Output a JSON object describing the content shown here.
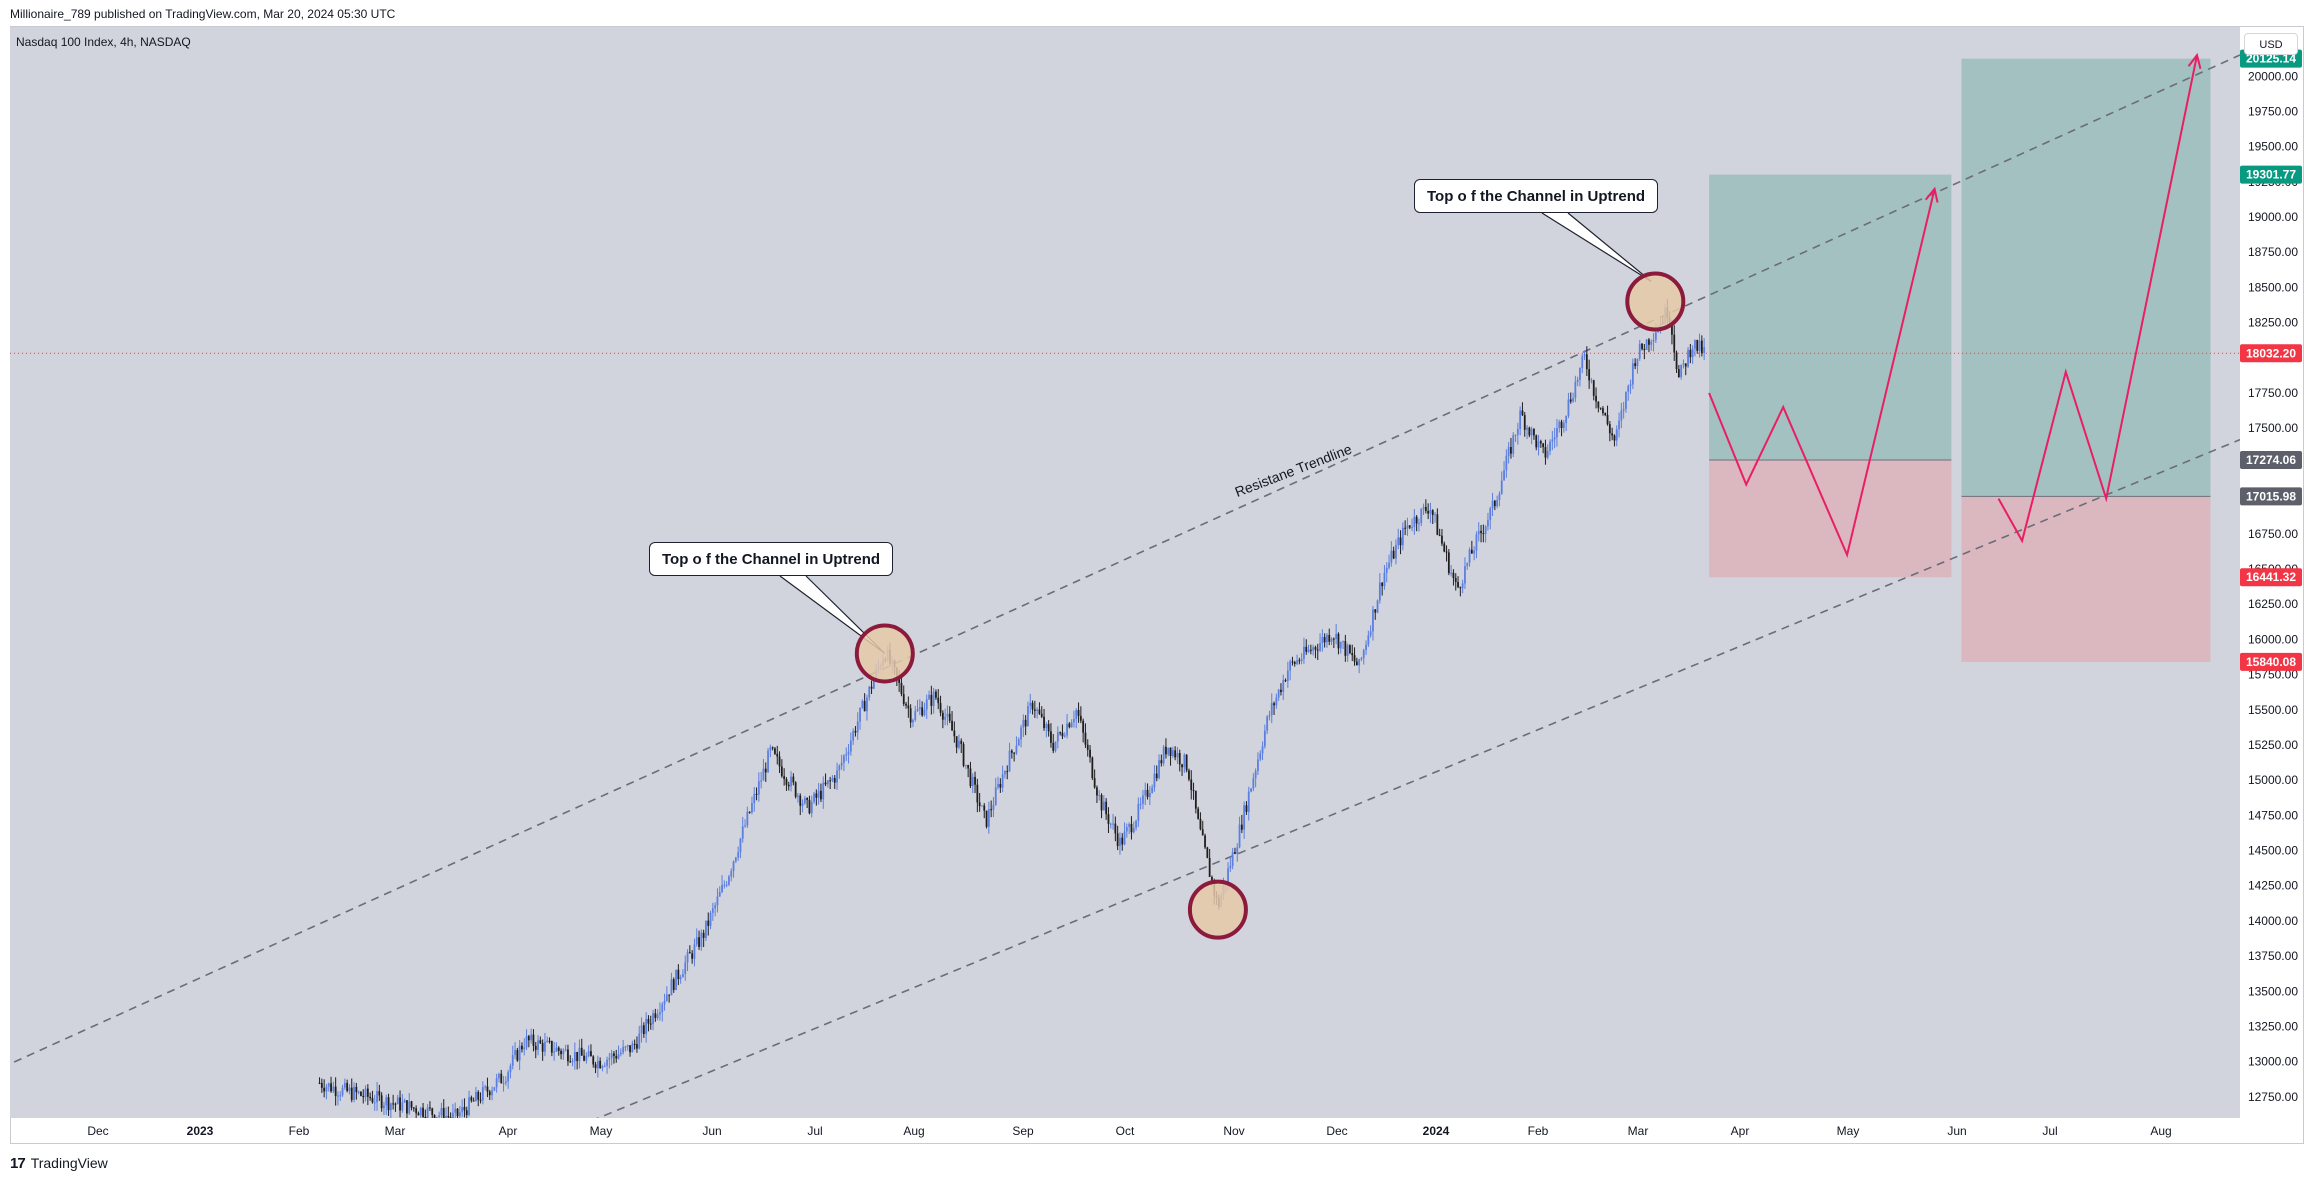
{
  "header": {
    "publish_info": "Millionaire_789 published on TradingView.com, Mar 20, 2024 05:30 UTC"
  },
  "symbol": {
    "label": "Nasdaq 100 Index, 4h, NASDAQ"
  },
  "currency": "USD",
  "footer": {
    "brand": "TradingView",
    "logo_text": "17"
  },
  "annotations": {
    "callout_1": "Top o f the Channel in Uptrend",
    "callout_2": "Top o f the Channel in Uptrend",
    "trendline_label": "Resistane Trendline"
  },
  "colors": {
    "background": "#d1d4dc",
    "up_candle": "#5b7fe0",
    "down_candle": "#1e1e1e",
    "target_zone": "#9ebfbf",
    "stop_zone": "#dcb4bc",
    "path": "#e91e63",
    "circle_fill": "#e6c9a8",
    "circle_stroke": "#8b1a3c",
    "current_price": "#f23645",
    "target_tag": "#089981",
    "neutral_tag": "#5d606b"
  },
  "chart_data": {
    "type": "candlestick",
    "symbol": "Nasdaq 100 Index",
    "timeframe": "4h",
    "exchange": "NASDAQ",
    "x_axis": {
      "ticks": [
        "Dec",
        "2023",
        "Feb",
        "Mar",
        "Apr",
        "May",
        "Jun",
        "Jul",
        "Aug",
        "Sep",
        "Oct",
        "Nov",
        "Dec",
        "2024",
        "Feb",
        "Mar",
        "Apr",
        "May",
        "Jun",
        "Jul",
        "Aug"
      ],
      "bold_ticks": [
        "2023",
        "2024"
      ]
    },
    "y_axis": {
      "range": [
        12600,
        20350
      ],
      "ticks": [
        "20250.00",
        "20000.00",
        "19750.00",
        "19500.00",
        "19250.00",
        "19000.00",
        "18750.00",
        "18500.00",
        "18250.00",
        "18000.00",
        "17750.00",
        "17500.00",
        "17250.00",
        "17000.00",
        "16750.00",
        "16500.00",
        "16250.00",
        "16000.00",
        "15750.00",
        "15500.00",
        "15250.00",
        "15000.00",
        "14750.00",
        "14500.00",
        "14250.00",
        "14000.00",
        "13750.00",
        "13500.00",
        "13250.00",
        "13000.00",
        "12750.00"
      ]
    },
    "price_path": [
      [
        "2023-02-01",
        12850
      ],
      [
        "2023-02-07",
        12800
      ],
      [
        "2023-03-13",
        12600
      ],
      [
        "2023-03-28",
        12900
      ],
      [
        "2023-04-03",
        13150
      ],
      [
        "2023-04-25",
        13000
      ],
      [
        "2023-05-05",
        13100
      ],
      [
        "2023-05-26",
        13900
      ],
      [
        "2023-06-02",
        14300
      ],
      [
        "2023-06-15",
        15200
      ],
      [
        "2023-06-26",
        14800
      ],
      [
        "2023-07-05",
        15050
      ],
      [
        "2023-07-19",
        15920
      ],
      [
        "2023-07-27",
        15450
      ],
      [
        "2023-08-03",
        15600
      ],
      [
        "2023-08-10",
        15250
      ],
      [
        "2023-08-18",
        14700
      ],
      [
        "2023-08-24",
        15100
      ],
      [
        "2023-09-01",
        15550
      ],
      [
        "2023-09-07",
        15250
      ],
      [
        "2023-09-14",
        15500
      ],
      [
        "2023-09-21",
        14850
      ],
      [
        "2023-09-27",
        14550
      ],
      [
        "2023-10-03",
        14800
      ],
      [
        "2023-10-11",
        15250
      ],
      [
        "2023-10-17",
        15100
      ],
      [
        "2023-10-20",
        14700
      ],
      [
        "2023-10-26",
        14100
      ],
      [
        "2023-11-01",
        14600
      ],
      [
        "2023-11-10",
        15450
      ],
      [
        "2023-11-16",
        15800
      ],
      [
        "2023-11-29",
        16050
      ],
      [
        "2023-12-07",
        15800
      ],
      [
        "2023-12-14",
        16450
      ],
      [
        "2023-12-21",
        16800
      ],
      [
        "2023-12-28",
        16950
      ],
      [
        "2024-01-05",
        16350
      ],
      [
        "2024-01-10",
        16650
      ],
      [
        "2024-01-16",
        16950
      ],
      [
        "2024-01-24",
        17600
      ],
      [
        "2024-01-31",
        17300
      ],
      [
        "2024-02-06",
        17600
      ],
      [
        "2024-02-12",
        18000
      ],
      [
        "2024-02-15",
        17750
      ],
      [
        "2024-02-21",
        17400
      ],
      [
        "2024-02-27",
        18000
      ],
      [
        "2024-03-04",
        18200
      ],
      [
        "2024-03-08",
        18350
      ],
      [
        "2024-03-11",
        17850
      ],
      [
        "2024-03-15",
        18100
      ],
      [
        "2024-03-19",
        18032
      ]
    ],
    "trendlines": [
      {
        "name": "Resistane Trendline",
        "style": "dashed",
        "points": [
          [
            "2022-11-08",
            13060
          ],
          [
            "2024-09-02",
            20240
          ]
        ]
      },
      {
        "name": "support",
        "style": "dashed",
        "points": [
          [
            "2023-05-05",
            12700
          ],
          [
            "2024-09-02",
            17500
          ]
        ]
      }
    ],
    "highlighted_points": [
      {
        "date": "2023-07-19",
        "price": 15900
      },
      {
        "date": "2023-10-26",
        "price": 14080
      },
      {
        "date": "2024-03-04",
        "price": 18400
      }
    ],
    "positions": [
      {
        "start": "2024-03-20",
        "end": "2024-05-31",
        "entry": 17274.06,
        "target": 19301.77,
        "stop": 16441.32
      },
      {
        "start": "2024-06-03",
        "end": "2024-08-16",
        "entry": 17015.98,
        "target": 20125.14,
        "stop": 15840.08
      }
    ],
    "projected_paths": [
      [
        [
          "2024-03-20",
          17750
        ],
        [
          "2024-03-31",
          17100
        ],
        [
          "2024-04-11",
          17650
        ],
        [
          "2024-04-30",
          16600
        ],
        [
          "2024-05-26",
          19200
        ]
      ],
      [
        [
          "2024-06-14",
          17000
        ],
        [
          "2024-06-21",
          16700
        ],
        [
          "2024-07-04",
          17900
        ],
        [
          "2024-07-16",
          17000
        ],
        [
          "2024-08-12",
          20150
        ]
      ]
    ],
    "current_price": 18032.2,
    "price_tags": [
      {
        "value": "20125.14",
        "kind": "target"
      },
      {
        "value": "19301.77",
        "kind": "target"
      },
      {
        "value": "18032.20",
        "kind": "current"
      },
      {
        "value": "17274.06",
        "kind": "neutral"
      },
      {
        "value": "17015.98",
        "kind": "neutral"
      },
      {
        "value": "16441.32",
        "kind": "stop"
      },
      {
        "value": "15840.08",
        "kind": "stop"
      }
    ]
  }
}
